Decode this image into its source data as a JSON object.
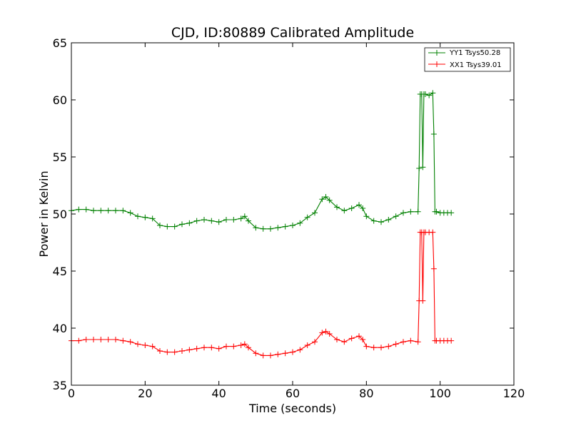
{
  "chart_data": {
    "type": "line",
    "title": "CJD, ID:80889 Calibrated Amplitude",
    "xlabel": "Time (seconds)",
    "ylabel": "Power in Kelvin",
    "xlim": [
      0,
      120
    ],
    "ylim": [
      35,
      65
    ],
    "xticks": [
      "0",
      "20",
      "40",
      "60",
      "80",
      "100",
      "120"
    ],
    "yticks": [
      "35",
      "40",
      "45",
      "50",
      "55",
      "60",
      "65"
    ],
    "grid": false,
    "legend_position": "top-right",
    "marker": "+",
    "series": [
      {
        "name": "YY1 Tsys50.28",
        "color": "#008000",
        "x": [
          0,
          2,
          4,
          6,
          8,
          10,
          12,
          14,
          16,
          18,
          20,
          22,
          24,
          26,
          28,
          30,
          32,
          34,
          36,
          38,
          40,
          42,
          44,
          46,
          47,
          48,
          50,
          52,
          54,
          56,
          58,
          60,
          62,
          64,
          66,
          68,
          69,
          70,
          72,
          74,
          76,
          78,
          79,
          80,
          82,
          84,
          86,
          88,
          90,
          92,
          94,
          94.3,
          94.6,
          95,
          95.3,
          95.6,
          96,
          97,
          98,
          98.3,
          98.6,
          99,
          100,
          101,
          102,
          103
        ],
        "y": [
          50.3,
          50.4,
          50.4,
          50.3,
          50.3,
          50.3,
          50.3,
          50.3,
          50.1,
          49.8,
          49.7,
          49.6,
          49.0,
          48.9,
          48.9,
          49.1,
          49.2,
          49.4,
          49.5,
          49.4,
          49.3,
          49.5,
          49.5,
          49.6,
          49.8,
          49.4,
          48.8,
          48.7,
          48.7,
          48.8,
          48.9,
          49.0,
          49.2,
          49.7,
          50.1,
          51.3,
          51.5,
          51.2,
          50.6,
          50.3,
          50.5,
          50.8,
          50.5,
          49.8,
          49.4,
          49.3,
          49.5,
          49.8,
          50.1,
          50.2,
          50.2,
          54.0,
          60.5,
          60.5,
          54.1,
          60.5,
          60.5,
          60.4,
          60.6,
          57.0,
          50.2,
          50.2,
          50.1,
          50.1,
          50.1,
          50.1
        ]
      },
      {
        "name": "XX1 Tsys39.01",
        "color": "#ff0000",
        "x": [
          0,
          2,
          4,
          6,
          8,
          10,
          12,
          14,
          16,
          18,
          20,
          22,
          24,
          26,
          28,
          30,
          32,
          34,
          36,
          38,
          40,
          42,
          44,
          46,
          47,
          48,
          50,
          52,
          54,
          56,
          58,
          60,
          62,
          64,
          66,
          68,
          69,
          70,
          72,
          74,
          76,
          78,
          79,
          80,
          82,
          84,
          86,
          88,
          90,
          92,
          94,
          94.3,
          94.6,
          95,
          95.3,
          95.6,
          96,
          97,
          98,
          98.3,
          98.6,
          99,
          100,
          101,
          102,
          103
        ],
        "y": [
          38.9,
          38.9,
          39.0,
          39.0,
          39.0,
          39.0,
          39.0,
          38.9,
          38.8,
          38.6,
          38.5,
          38.4,
          38.0,
          37.9,
          37.9,
          38.0,
          38.1,
          38.2,
          38.3,
          38.3,
          38.2,
          38.4,
          38.4,
          38.5,
          38.6,
          38.3,
          37.8,
          37.6,
          37.6,
          37.7,
          37.8,
          37.9,
          38.1,
          38.5,
          38.8,
          39.6,
          39.7,
          39.5,
          39.0,
          38.8,
          39.1,
          39.3,
          39.0,
          38.4,
          38.3,
          38.3,
          38.4,
          38.6,
          38.8,
          38.9,
          38.8,
          42.4,
          48.4,
          48.4,
          42.4,
          48.4,
          48.4,
          48.4,
          48.4,
          45.2,
          38.9,
          38.9,
          38.9,
          38.9,
          38.9,
          38.9
        ]
      }
    ]
  }
}
